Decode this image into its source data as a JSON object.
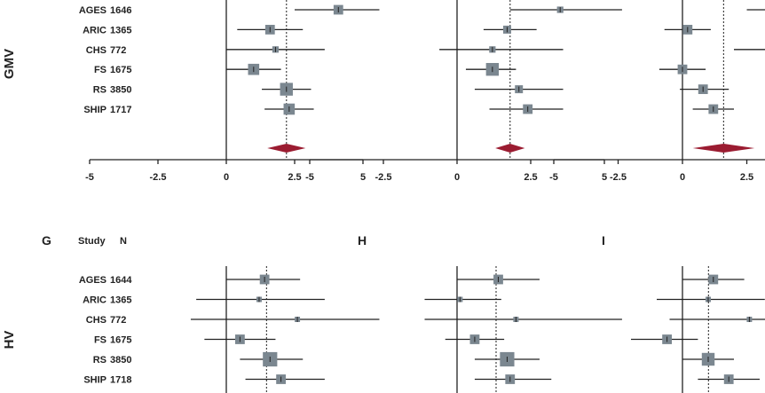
{
  "colors": {
    "box": "#7b8790",
    "diamond": "#9b1c31",
    "line": "#222222",
    "ref": "#444444"
  },
  "chart_data": {
    "type": "forest",
    "x_ticks": [
      "-5",
      "-2.5",
      "0",
      "2.5",
      "5"
    ],
    "xlim": [
      -5,
      5
    ],
    "column_headers": {
      "study": "Study",
      "n": "N"
    },
    "rows": [
      {
        "label": "GMV",
        "studies": [
          {
            "name": "AGES",
            "n": "1646"
          },
          {
            "name": "ARIC",
            "n": "1365"
          },
          {
            "name": "CHS",
            "n": "772"
          },
          {
            "name": "FS",
            "n": "1675"
          },
          {
            "name": "RS",
            "n": "3850"
          },
          {
            "name": "SHIP",
            "n": "1717"
          }
        ],
        "panels": [
          {
            "label": "",
            "pooled": {
              "est": 2.2,
              "lo": 1.5,
              "hi": 2.9
            },
            "estimates": [
              {
                "est": 4.1,
                "lo": 2.5,
                "hi": 5.6,
                "weight": 0.6
              },
              {
                "est": 1.6,
                "lo": 0.4,
                "hi": 2.8,
                "weight": 0.6
              },
              {
                "est": 1.8,
                "lo": 0.0,
                "hi": 3.6,
                "weight": 0.4
              },
              {
                "est": 1.0,
                "lo": 0.0,
                "hi": 2.0,
                "weight": 0.7
              },
              {
                "est": 2.2,
                "lo": 1.3,
                "hi": 3.1,
                "weight": 0.8
              },
              {
                "est": 2.3,
                "lo": 1.4,
                "hi": 3.2,
                "weight": 0.7
              }
            ]
          },
          {
            "label": "",
            "pooled": {
              "est": 1.8,
              "lo": 1.3,
              "hi": 2.3
            },
            "estimates": [
              {
                "est": 3.5,
                "lo": 1.8,
                "hi": 5.6,
                "weight": 0.4
              },
              {
                "est": 1.7,
                "lo": 0.9,
                "hi": 2.7,
                "weight": 0.5
              },
              {
                "est": 1.2,
                "lo": -0.6,
                "hi": 3.6,
                "weight": 0.4
              },
              {
                "est": 1.2,
                "lo": 0.3,
                "hi": 2.0,
                "weight": 0.8
              },
              {
                "est": 2.1,
                "lo": 0.6,
                "hi": 3.6,
                "weight": 0.5
              },
              {
                "est": 2.4,
                "lo": 1.1,
                "hi": 3.6,
                "weight": 0.6
              }
            ]
          },
          {
            "label": "",
            "pooled": {
              "est": 1.6,
              "lo": 0.4,
              "hi": 2.8
            },
            "estimates": [
              {
                "est": 4.2,
                "lo": 2.5,
                "hi": 6.0,
                "weight": 0.6
              },
              {
                "est": 0.2,
                "lo": -0.7,
                "hi": 1.1,
                "weight": 0.6
              },
              {
                "est": 3.7,
                "lo": 2.0,
                "hi": 6.0,
                "weight": 0.6
              },
              {
                "est": 0.0,
                "lo": -0.9,
                "hi": 0.9,
                "weight": 0.6
              },
              {
                "est": 0.8,
                "lo": -0.1,
                "hi": 1.8,
                "weight": 0.6
              },
              {
                "est": 1.2,
                "lo": 0.4,
                "hi": 2.0,
                "weight": 0.6
              }
            ]
          }
        ]
      },
      {
        "label": "HV",
        "studies": [
          {
            "name": "AGES",
            "n": "1644"
          },
          {
            "name": "ARIC",
            "n": "1365"
          },
          {
            "name": "CHS",
            "n": "772"
          },
          {
            "name": "FS",
            "n": "1675"
          },
          {
            "name": "RS",
            "n": "3850"
          },
          {
            "name": "SHIP",
            "n": "1718"
          }
        ],
        "panels": [
          {
            "label": "G",
            "estimates": [
              {
                "est": 1.4,
                "lo": 0.0,
                "hi": 2.7,
                "weight": 0.6
              },
              {
                "est": 1.2,
                "lo": -1.1,
                "hi": 3.6,
                "weight": 0.3
              },
              {
                "est": 2.6,
                "lo": -1.3,
                "hi": 5.6,
                "weight": 0.25
              },
              {
                "est": 0.5,
                "lo": -0.8,
                "hi": 1.8,
                "weight": 0.6
              },
              {
                "est": 1.6,
                "lo": 0.5,
                "hi": 2.8,
                "weight": 0.9
              },
              {
                "est": 2.0,
                "lo": 0.7,
                "hi": 3.6,
                "weight": 0.6
              }
            ]
          },
          {
            "label": "H",
            "estimates": [
              {
                "est": 1.4,
                "lo": 0.0,
                "hi": 2.8,
                "weight": 0.6
              },
              {
                "est": 0.1,
                "lo": -1.1,
                "hi": 1.5,
                "weight": 0.3
              },
              {
                "est": 2.0,
                "lo": -1.1,
                "hi": 5.6,
                "weight": 0.2
              },
              {
                "est": 0.6,
                "lo": -0.4,
                "hi": 1.6,
                "weight": 0.6
              },
              {
                "est": 1.7,
                "lo": 0.6,
                "hi": 2.8,
                "weight": 0.9
              },
              {
                "est": 1.8,
                "lo": 0.6,
                "hi": 3.2,
                "weight": 0.6
              }
            ]
          },
          {
            "label": "I",
            "estimates": [
              {
                "est": 1.2,
                "lo": 0.0,
                "hi": 2.4,
                "weight": 0.6
              },
              {
                "est": 1.0,
                "lo": -1.0,
                "hi": 3.2,
                "weight": 0.3
              },
              {
                "est": 2.6,
                "lo": -0.5,
                "hi": 6.0,
                "weight": 0.25
              },
              {
                "est": -0.6,
                "lo": -2.0,
                "hi": 0.6,
                "weight": 0.6
              },
              {
                "est": 1.0,
                "lo": 0.0,
                "hi": 2.0,
                "weight": 0.8
              },
              {
                "est": 1.8,
                "lo": 0.6,
                "hi": 3.0,
                "weight": 0.6
              }
            ]
          }
        ]
      }
    ]
  }
}
